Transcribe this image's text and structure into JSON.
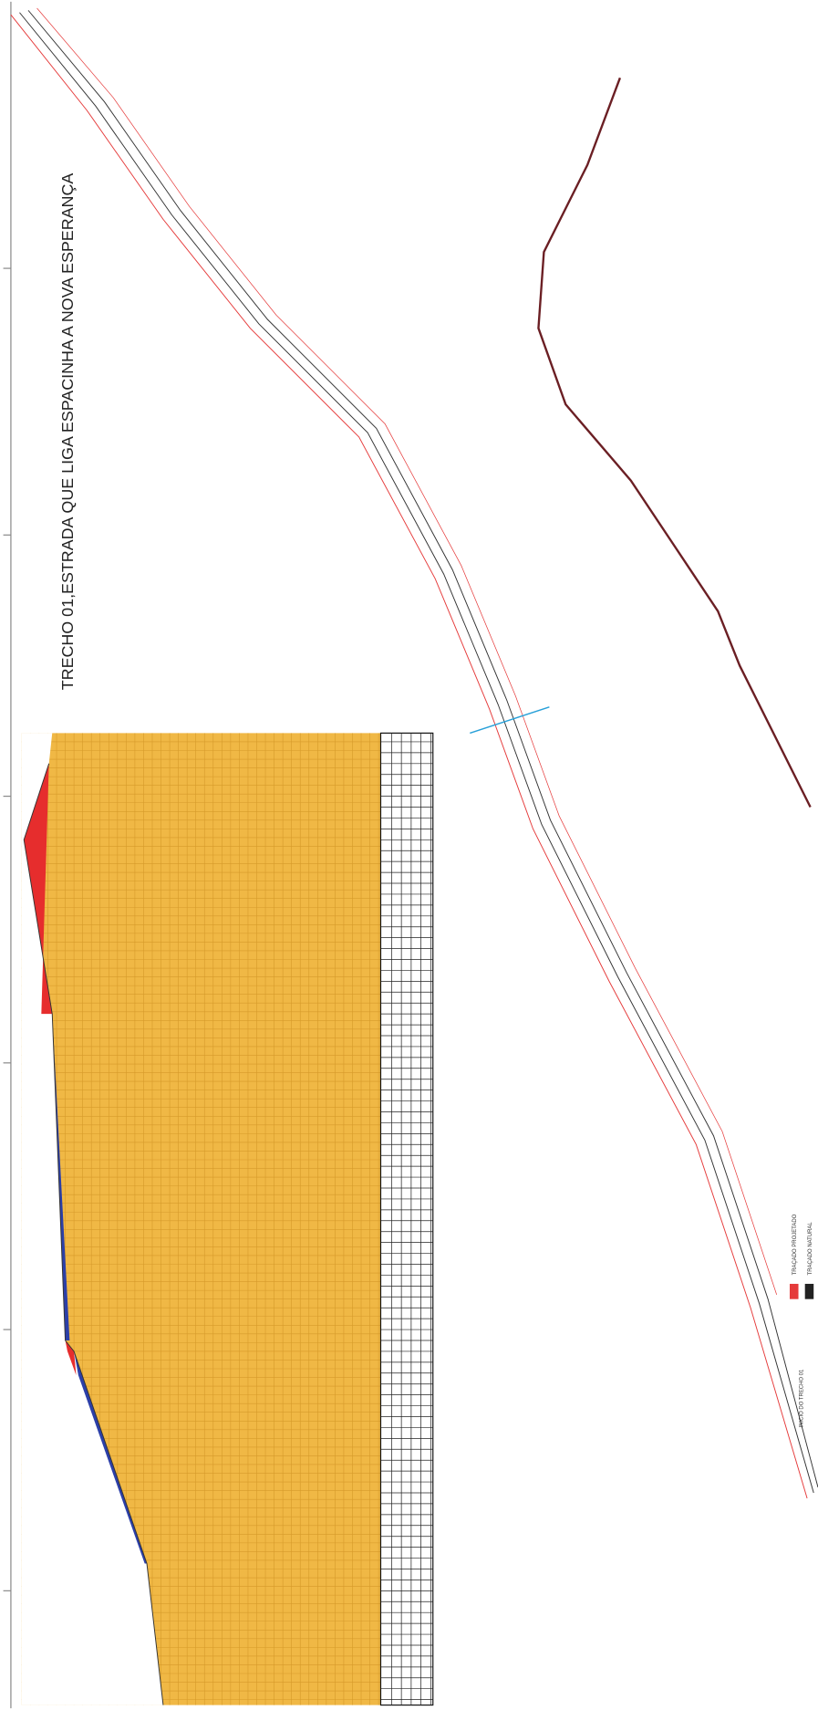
{
  "title": "TRECHO 01,ESTRADA QUE LIGA ESPACINHA A NOVA ESPERANÇA",
  "legend": {
    "items": [
      {
        "label": "TRAÇADO PROJETADO",
        "color": "#e53a3a"
      },
      {
        "label": "TRAÇADO NATURAL",
        "color": "#222222"
      }
    ]
  },
  "start_label": "INICIO DO TRECHO 01"
}
